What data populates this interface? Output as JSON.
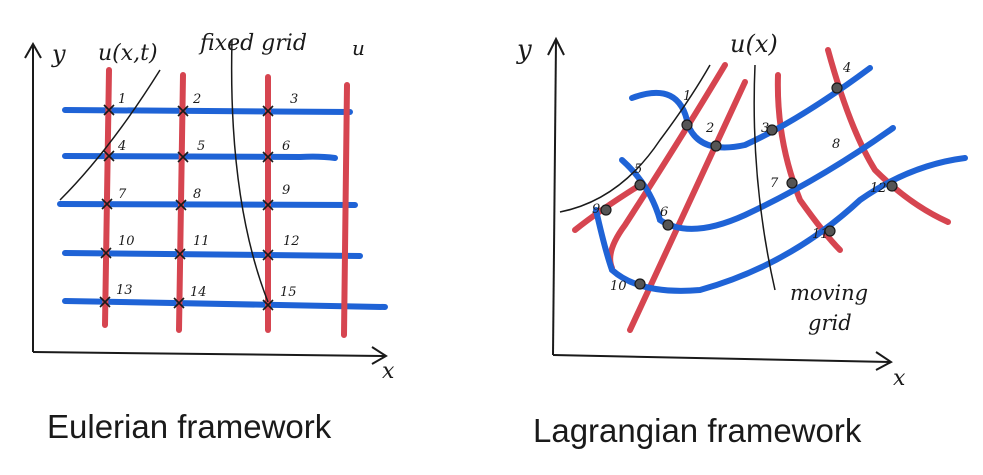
{
  "colors": {
    "grid_blue": "#1f63d6",
    "grid_red": "#d64550",
    "ink": "#1a1a1a",
    "node": "#555555"
  },
  "eulerian": {
    "caption": "Eulerian framework",
    "y_axis": "y",
    "x_axis": "x",
    "velocity_label": "u(x,t)",
    "grid_label": "fixed grid",
    "extra_label": "u",
    "nodes": [
      "1",
      "2",
      "3",
      "4",
      "5",
      "6",
      "7",
      "8",
      "9",
      "10",
      "11",
      "12",
      "13",
      "14",
      "15"
    ]
  },
  "lagrangian": {
    "caption": "Lagrangian framework",
    "y_axis": "y",
    "x_axis": "x",
    "velocity_label": "u(x)",
    "grid_label_1": "moving",
    "grid_label_2": "grid",
    "nodes": [
      "1",
      "2",
      "3",
      "4",
      "5",
      "6",
      "7",
      "8",
      "9",
      "10",
      "11",
      "12"
    ]
  }
}
